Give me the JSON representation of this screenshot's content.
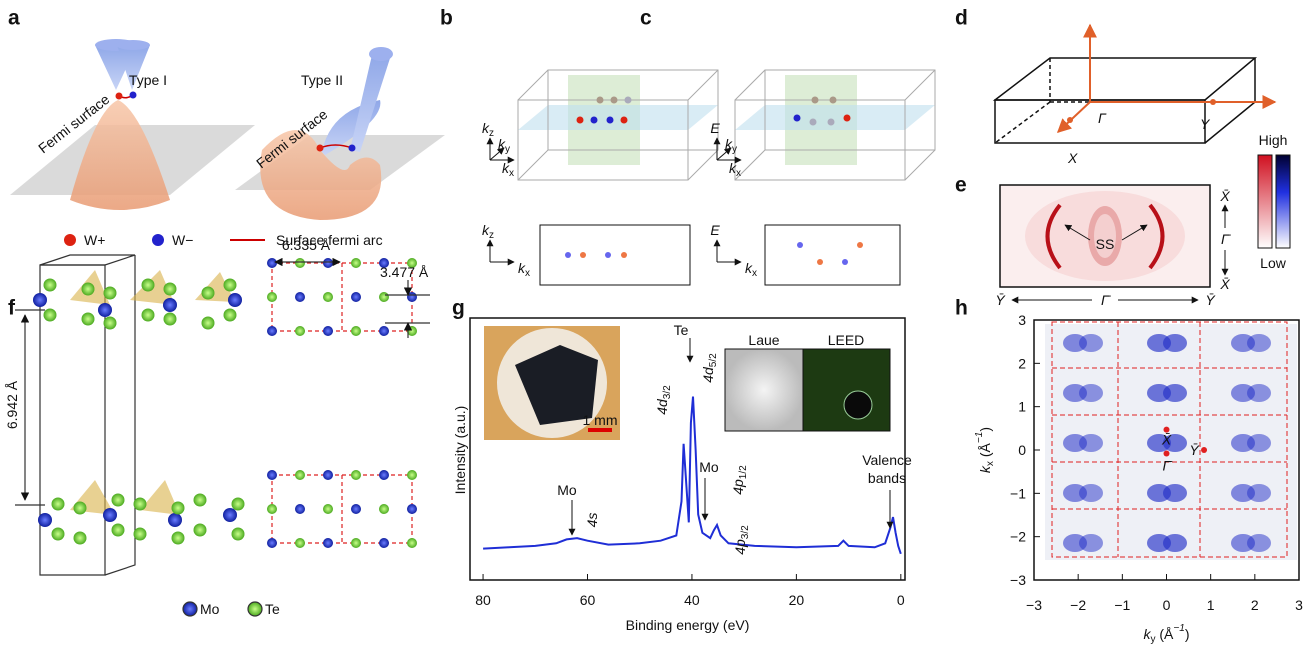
{
  "panels": {
    "a": {
      "label": "a",
      "type1": "Type I",
      "type2": "Type II",
      "fermi1": "Fermi surface",
      "fermi2": "Fermi surface",
      "legend": [
        "W+",
        "W−",
        "Surface fermi arc"
      ]
    },
    "b": {
      "label": "b",
      "top_axes": [
        {
          "base": "k",
          "sub": "z"
        },
        {
          "base": "k",
          "sub": "y"
        },
        {
          "base": "k",
          "sub": "x"
        }
      ],
      "bottom_axes": [
        {
          "base": "k",
          "sub": "z"
        },
        {
          "base": "k",
          "sub": "x"
        }
      ]
    },
    "c": {
      "label": "c",
      "top_axes": [
        {
          "base": "E"
        },
        {
          "base": "k",
          "sub": "y"
        },
        {
          "base": "k",
          "sub": "x"
        }
      ],
      "bottom_axes": [
        {
          "base": "E"
        },
        {
          "base": "k",
          "sub": "x"
        }
      ]
    },
    "d": {
      "label": "d",
      "points": [
        "Γ",
        "X",
        "Y"
      ]
    },
    "e": {
      "label": "e",
      "right": [
        "X̄",
        "Γ̄",
        "X̄"
      ],
      "bottom": [
        "Ȳ",
        "Γ̄",
        "Ȳ"
      ],
      "ss": "SS",
      "high": "High",
      "low": "Low"
    },
    "f": {
      "label": "f",
      "a": "6.335 Å",
      "b": "3.477 Å",
      "c": "6.942 Å",
      "legend": [
        "Mo",
        "Te"
      ]
    },
    "g": {
      "label": "g",
      "type": "line",
      "xlabel": "Binding energy (eV)",
      "ylabel": "Intensity (a.u.)",
      "xlim": [
        82.5,
        -0.8
      ],
      "ylim": [
        0,
        100
      ],
      "xticks": [
        80,
        60,
        40,
        20,
        0
      ],
      "color": "#1f2ed6",
      "x": [
        80,
        75,
        70,
        66,
        64,
        62,
        60,
        56,
        50,
        46,
        43,
        42,
        41.6,
        41.2,
        40.6,
        40.2,
        39.8,
        39.3,
        38.8,
        38,
        36.5,
        35.8,
        35.2,
        34.5,
        33,
        28,
        20,
        12,
        11,
        10,
        5,
        3,
        2,
        1.5,
        1,
        0.5,
        0
      ],
      "values": [
        12,
        12.5,
        13,
        14,
        15.5,
        16,
        15,
        13.5,
        14,
        15,
        17,
        30,
        52,
        40,
        22,
        60,
        70,
        50,
        25,
        18,
        16,
        19,
        21,
        17,
        14,
        13,
        12.5,
        13,
        15,
        13,
        12.5,
        14,
        20,
        24,
        18,
        13,
        10
      ],
      "annotations": {
        "te": "Te",
        "d32": {
          "base": "4d",
          "sub": "3/2"
        },
        "d52": {
          "base": "4d",
          "sub": "5/2"
        },
        "mo_p": "Mo",
        "p12": {
          "base": "4p",
          "sub": "1/2"
        },
        "p32": {
          "base": "4p",
          "sub": "3/2"
        },
        "mo_s": "Mo",
        "s": "4s",
        "valence": [
          "Valence",
          "bands"
        ]
      },
      "insets": [
        "Laue",
        "LEED"
      ],
      "scale_bar": "1 mm"
    },
    "h": {
      "label": "h",
      "xlabel": {
        "base": "k",
        "sub": "y",
        "rest": " (Å",
        "sup": "−1",
        "end": ")"
      },
      "ylabel": {
        "base": "k",
        "sub": "x",
        "rest": " (Å",
        "sup": "−1",
        "end": ")"
      },
      "xlim": [
        -3,
        3
      ],
      "ylim": [
        -3,
        3
      ],
      "xticks": [
        {
          "value": -3,
          "label": "−3"
        },
        {
          "value": -2,
          "label": "−2"
        },
        {
          "value": -1,
          "label": "−1"
        },
        0,
        1,
        2,
        3
      ],
      "yticks": [
        {
          "value": -3,
          "label": "−3"
        },
        {
          "value": -2,
          "label": "−2"
        },
        {
          "value": -1,
          "label": "−1"
        },
        0,
        1,
        2,
        3
      ],
      "color": "#e02020",
      "points": [
        {
          "label": "X̄",
          "x": 0,
          "y": 0.47
        },
        {
          "label": "Γ̄",
          "x": 0,
          "y": -0.08
        },
        {
          "label": "Ȳ",
          "x": 0.85,
          "y": 0
        }
      ]
    }
  }
}
